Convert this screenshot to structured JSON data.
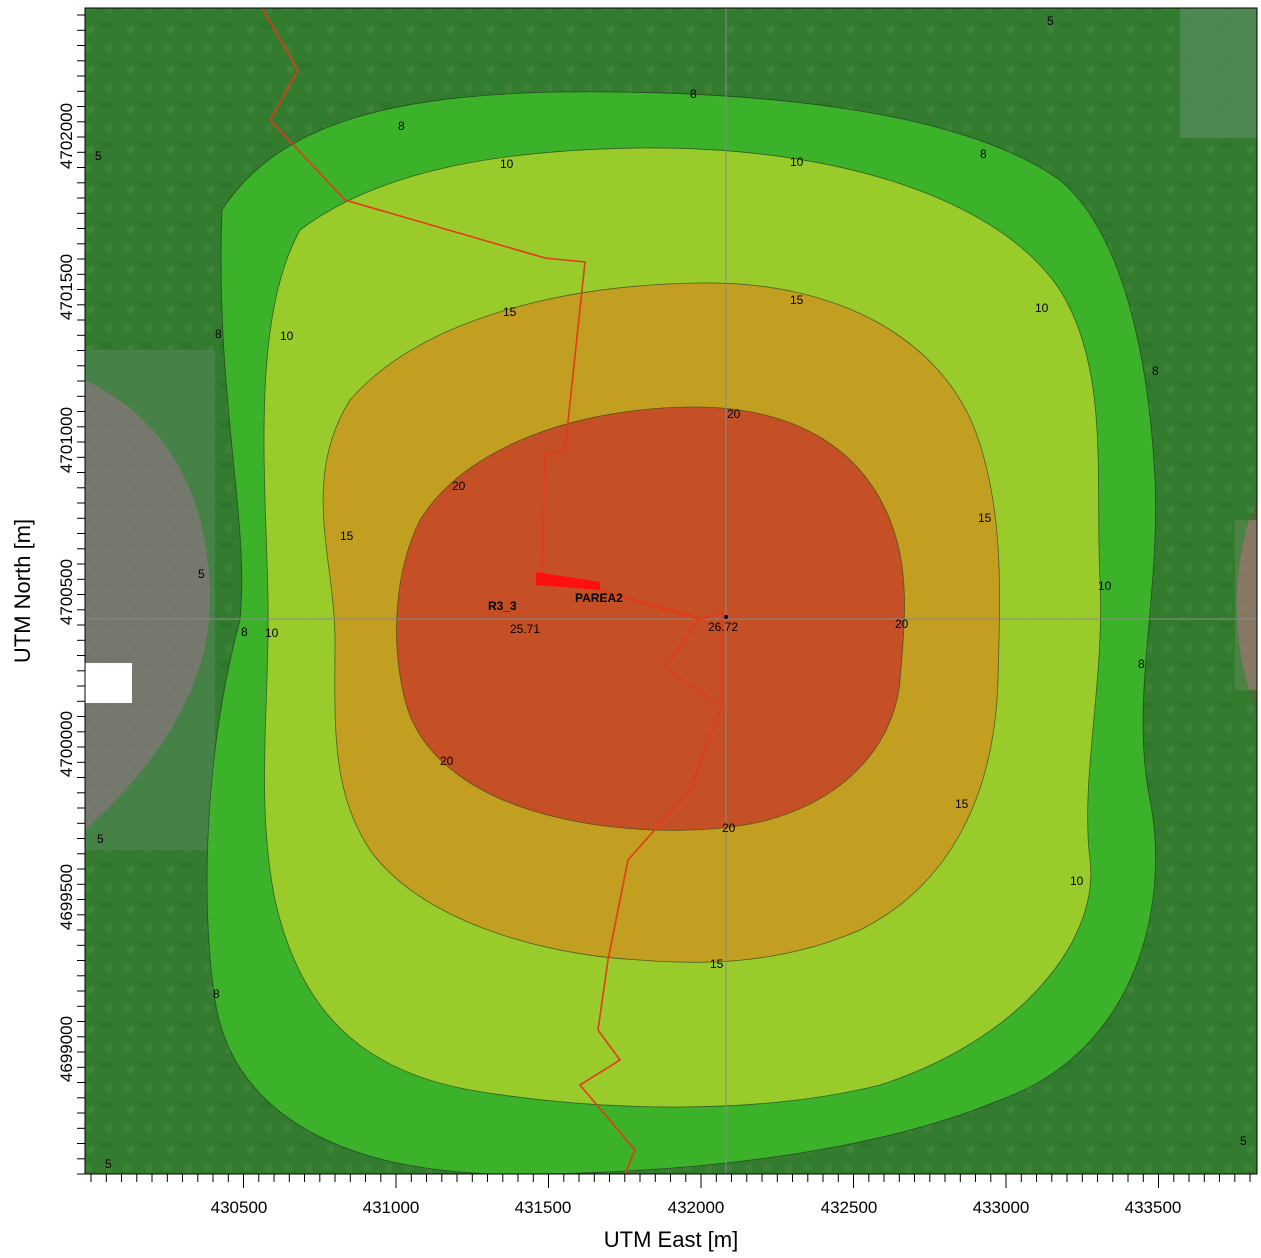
{
  "axes": {
    "x_title": "UTM East [m]",
    "y_title": "UTM North [m]",
    "x_ticks": [
      "430500",
      "431000",
      "431500",
      "432000",
      "432500",
      "433000",
      "433500"
    ],
    "y_ticks": [
      "4702000",
      "4701500",
      "4701000",
      "4700500",
      "4700000",
      "4699500",
      "4699000"
    ]
  },
  "features": {
    "receptor_label": "R3_3",
    "receptor_value": "25.71",
    "area_label": "PAREA2",
    "max_value": "26.72"
  },
  "contour_levels": [
    {
      "value": "5",
      "color": "#1f8a2a"
    },
    {
      "value": "8",
      "color": "#3fbf2a"
    },
    {
      "value": "10",
      "color": "#c9d62a"
    },
    {
      "value": "15",
      "color": "#d9871e"
    },
    {
      "value": "20",
      "color": "#c8202a"
    }
  ],
  "contour_labels": [
    "5",
    "5",
    "5",
    "5",
    "5",
    "5",
    "8",
    "8",
    "8",
    "8",
    "8",
    "8",
    "8",
    "8",
    "10",
    "10",
    "10",
    "10",
    "10",
    "10",
    "10",
    "15",
    "15",
    "15",
    "15",
    "15",
    "15",
    "20",
    "20",
    "20",
    "20",
    "20"
  ],
  "colors": {
    "map_base": "#4f6b3a",
    "route_line": "#e23a1a",
    "area_fill": "#ff1010",
    "grid": "#8a8a8a"
  }
}
